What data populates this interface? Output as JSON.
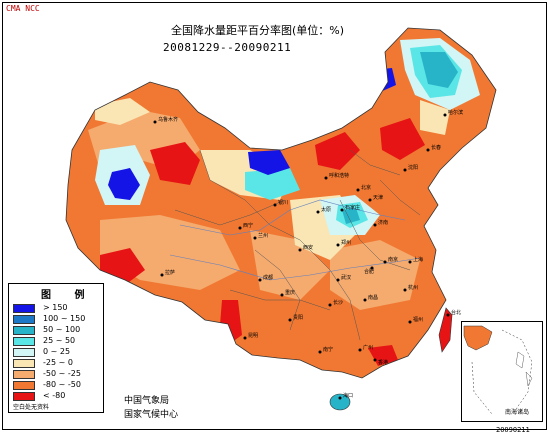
{
  "header": {
    "logo_text": "CMA NCC",
    "title": "全国降水量距平百分率图(单位：%)",
    "date_range": "20081229--20090211"
  },
  "legend": {
    "title": "图 例",
    "items": [
      {
        "label": "> 150",
        "color": "#1414e6"
      },
      {
        "label": "100 ~ 150",
        "color": "#1e78c8"
      },
      {
        "label": "50 ~ 100",
        "color": "#28b4c8"
      },
      {
        "label": "25 ~ 50",
        "color": "#5ae6e6"
      },
      {
        "label": "0 ~ 25",
        "color": "#d2f5f5"
      },
      {
        "label": "-25 ~ 0",
        "color": "#fae6b4"
      },
      {
        "label": "-50 ~ -25",
        "color": "#f5aa6e"
      },
      {
        "label": "-80 ~ -50",
        "color": "#f07832"
      },
      {
        "label": "< -80",
        "color": "#e61414"
      }
    ],
    "missing_label": "空白处无资料"
  },
  "footer": {
    "org_line1": "中国气象局",
    "org_line2": "国家气候中心",
    "stamp": "20090211",
    "inset_label": "南海诸岛"
  },
  "cities": [
    {
      "name": "乌鲁木齐"
    },
    {
      "name": "哈尔滨"
    },
    {
      "name": "长春"
    },
    {
      "name": "沈阳"
    },
    {
      "name": "呼和浩特"
    },
    {
      "name": "北京"
    },
    {
      "name": "天津"
    },
    {
      "name": "石家庄"
    },
    {
      "name": "太原"
    },
    {
      "name": "济南"
    },
    {
      "name": "银川"
    },
    {
      "name": "西宁"
    },
    {
      "name": "兰州"
    },
    {
      "name": "西安"
    },
    {
      "name": "郑州"
    },
    {
      "name": "南京"
    },
    {
      "name": "合肥"
    },
    {
      "name": "上海"
    },
    {
      "name": "拉萨"
    },
    {
      "name": "成都"
    },
    {
      "name": "武汉"
    },
    {
      "name": "杭州"
    },
    {
      "name": "重庆"
    },
    {
      "name": "长沙"
    },
    {
      "name": "南昌"
    },
    {
      "name": "福州"
    },
    {
      "name": "贵阳"
    },
    {
      "name": "昆明"
    },
    {
      "name": "台北"
    },
    {
      "name": "南宁"
    },
    {
      "name": "广州"
    },
    {
      "name": "香港"
    },
    {
      "name": "海口"
    }
  ]
}
